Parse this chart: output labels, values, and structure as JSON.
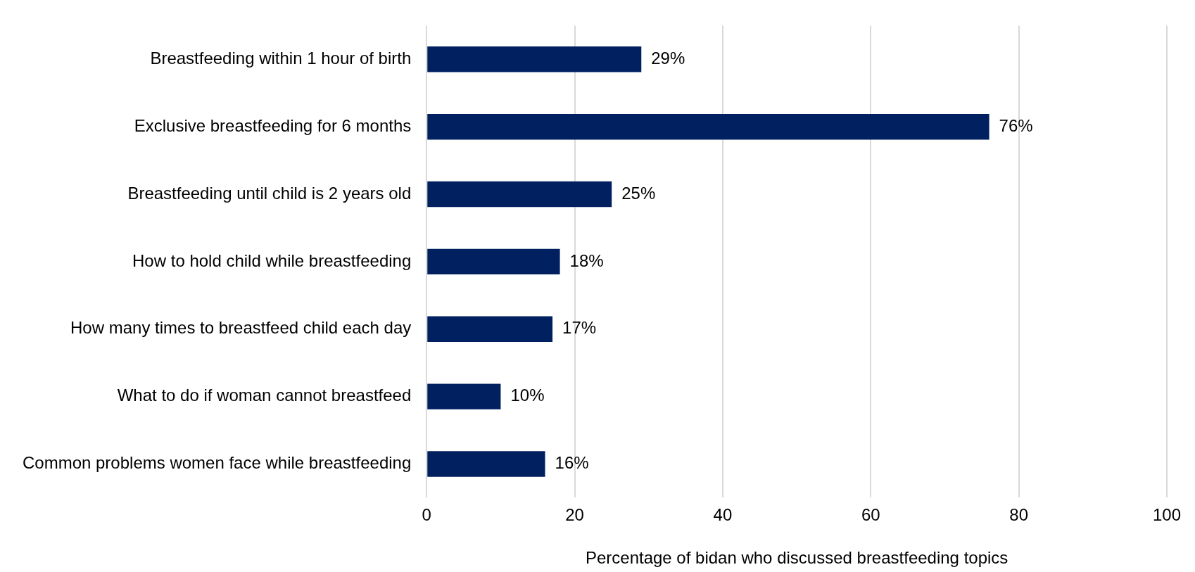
{
  "chart_data": {
    "type": "bar",
    "orientation": "horizontal",
    "xlabel": "Percentage of bidan who discussed breastfeeding topics",
    "categories": [
      "Breastfeeding within 1 hour of birth",
      "Exclusive breastfeeding for 6 months",
      "Breastfeeding until child is 2 years old",
      "How to hold child while breastfeeding",
      "How many times to breastfeed child each day",
      "What to do if woman cannot breastfeed",
      "Common problems women face while breastfeeding"
    ],
    "values": [
      29,
      76,
      25,
      18,
      17,
      10,
      16
    ],
    "value_labels": [
      "29%",
      "76%",
      "25%",
      "18%",
      "17%",
      "10%",
      "16%"
    ],
    "color": "#002060",
    "xlim": [
      0,
      100
    ],
    "xticks": [
      0,
      20,
      40,
      60,
      80,
      100
    ],
    "grid": "x",
    "legend": false
  }
}
